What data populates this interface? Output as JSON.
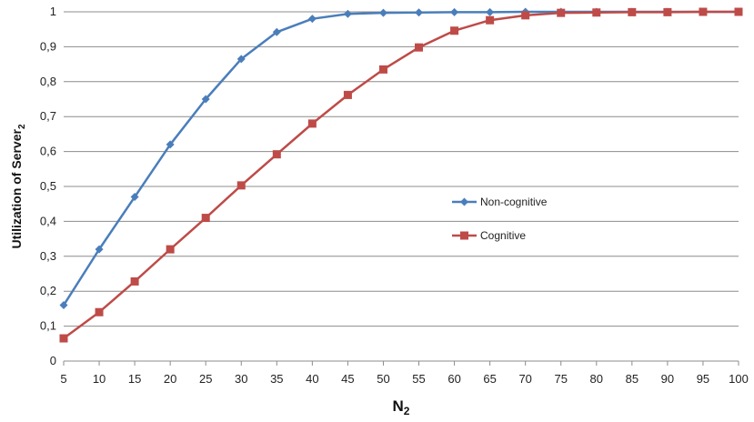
{
  "chart_data": {
    "type": "line",
    "xlabel": {
      "main": "N",
      "sub": "2"
    },
    "ylabel": {
      "main": "Utilization of Server",
      "sub": "2"
    },
    "x": [
      5,
      10,
      15,
      20,
      25,
      30,
      35,
      40,
      45,
      50,
      55,
      60,
      65,
      70,
      75,
      80,
      85,
      90,
      95,
      100
    ],
    "x_tick_labels": [
      "5",
      "10",
      "15",
      "20",
      "25",
      "30",
      "35",
      "40",
      "45",
      "50",
      "55",
      "60",
      "65",
      "70",
      "75",
      "80",
      "85",
      "90",
      "95",
      "100"
    ],
    "ylim": [
      0,
      1
    ],
    "y_ticks": [
      0,
      0.1,
      0.2,
      0.3,
      0.4,
      0.5,
      0.6,
      0.7,
      0.8,
      0.9,
      1
    ],
    "y_tick_labels": [
      "0",
      "0,1",
      "0,2",
      "0,3",
      "0,4",
      "0,5",
      "0,6",
      "0,7",
      "0,8",
      "0,9",
      "1"
    ],
    "grid": "horizontal",
    "legend_position": "center-right",
    "series": [
      {
        "name": "Non-cognitive",
        "color": "#4a7ebb",
        "marker": "diamond",
        "values": [
          0.16,
          0.32,
          0.47,
          0.62,
          0.75,
          0.865,
          0.942,
          0.98,
          0.994,
          0.997,
          0.998,
          0.999,
          0.999,
          1.0,
          1.0,
          1.0,
          1.0,
          1.0,
          1.0,
          1.0
        ]
      },
      {
        "name": "Cognitive",
        "color": "#be4b48",
        "marker": "square",
        "values": [
          0.065,
          0.14,
          0.228,
          0.32,
          0.41,
          0.503,
          0.592,
          0.68,
          0.762,
          0.835,
          0.898,
          0.946,
          0.976,
          0.99,
          0.997,
          0.998,
          0.999,
          0.999,
          1.0,
          1.0
        ]
      }
    ]
  }
}
